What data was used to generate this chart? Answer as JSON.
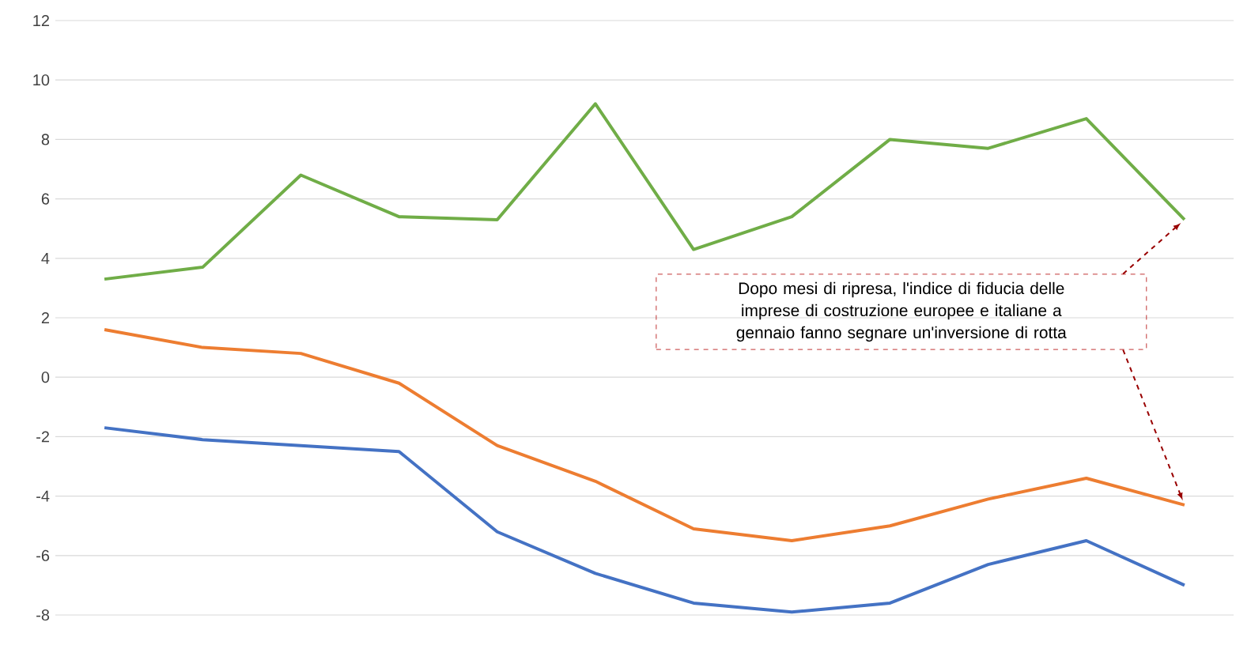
{
  "chart_data": {
    "type": "line",
    "categories": [
      null,
      null,
      null,
      null,
      null,
      null,
      null,
      null,
      null,
      null,
      null,
      null
    ],
    "series": [
      {
        "color": "#70ad47",
        "values": [
          3.3,
          3.7,
          6.8,
          5.4,
          5.3,
          9.2,
          4.3,
          5.4,
          8.0,
          7.7,
          8.7,
          5.3
        ]
      },
      {
        "color": "#ed7d31",
        "values": [
          1.6,
          1.0,
          0.8,
          -0.2,
          -2.3,
          -3.5,
          -5.1,
          -5.5,
          -5.0,
          -4.1,
          -3.4,
          -4.3
        ]
      },
      {
        "color": "#4472c4",
        "values": [
          -1.7,
          -2.1,
          -2.3,
          -2.5,
          -5.2,
          -6.6,
          -7.6,
          -7.9,
          -7.6,
          -6.3,
          -5.5,
          -7.0
        ]
      }
    ],
    "ylim": [
      -8,
      12
    ],
    "yticks": [
      -8,
      -6,
      -4,
      -2,
      0,
      2,
      4,
      6,
      8,
      10,
      12
    ],
    "grid": "y",
    "tick_labels": "y",
    "marker": "none",
    "line_style": "solid",
    "annotations": [
      "Dopo mesi di ripresa, l'indice di fiducia delle imprese di costruzione europee e italiane a gennaio fanno segnare un'inversione di rotta"
    ]
  }
}
